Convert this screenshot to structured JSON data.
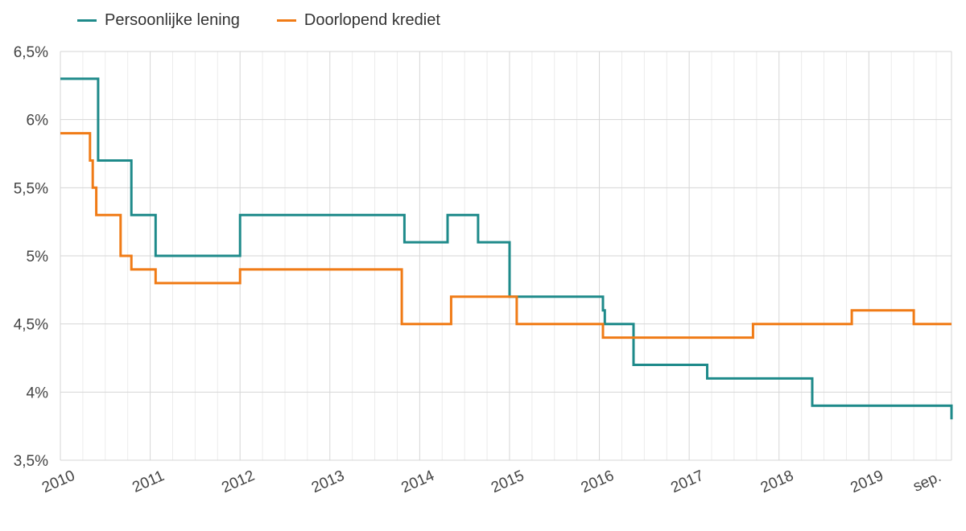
{
  "chart_data": {
    "type": "line",
    "step": true,
    "x_range": [
      2010.0,
      2019.92
    ],
    "ylim": [
      3.5,
      6.5
    ],
    "y_ticks": [
      {
        "value": 3.5,
        "label": "3,5%"
      },
      {
        "value": 4.0,
        "label": "4%"
      },
      {
        "value": 4.5,
        "label": "4,5%"
      },
      {
        "value": 5.0,
        "label": "5%"
      },
      {
        "value": 5.5,
        "label": "5,5%"
      },
      {
        "value": 6.0,
        "label": "6%"
      },
      {
        "value": 6.5,
        "label": "6,5%"
      }
    ],
    "x_ticks": [
      {
        "value": 2010.0,
        "label": "2010"
      },
      {
        "value": 2011.0,
        "label": "2011"
      },
      {
        "value": 2012.0,
        "label": "2012"
      },
      {
        "value": 2013.0,
        "label": "2013"
      },
      {
        "value": 2014.0,
        "label": "2014"
      },
      {
        "value": 2015.0,
        "label": "2015"
      },
      {
        "value": 2016.0,
        "label": "2016"
      },
      {
        "value": 2017.0,
        "label": "2017"
      },
      {
        "value": 2018.0,
        "label": "2018"
      },
      {
        "value": 2019.0,
        "label": "2019"
      },
      {
        "value": 2019.67,
        "label": "sep."
      }
    ],
    "grid": true,
    "legend_position": "top-left",
    "series": [
      {
        "name": "Persoonlijke lening",
        "color": "#1e8a8a",
        "points": [
          [
            2010.0,
            6.3
          ],
          [
            2010.42,
            6.3
          ],
          [
            2010.42,
            5.7
          ],
          [
            2010.79,
            5.7
          ],
          [
            2010.79,
            5.3
          ],
          [
            2011.06,
            5.3
          ],
          [
            2011.06,
            5.0
          ],
          [
            2012.0,
            5.0
          ],
          [
            2012.0,
            5.3
          ],
          [
            2013.83,
            5.3
          ],
          [
            2013.83,
            5.1
          ],
          [
            2014.31,
            5.1
          ],
          [
            2014.31,
            5.3
          ],
          [
            2014.65,
            5.3
          ],
          [
            2014.65,
            5.1
          ],
          [
            2015.0,
            5.1
          ],
          [
            2015.0,
            4.7
          ],
          [
            2016.04,
            4.7
          ],
          [
            2016.04,
            4.6
          ],
          [
            2016.06,
            4.6
          ],
          [
            2016.06,
            4.5
          ],
          [
            2016.38,
            4.5
          ],
          [
            2016.38,
            4.2
          ],
          [
            2017.2,
            4.2
          ],
          [
            2017.2,
            4.1
          ],
          [
            2018.37,
            4.1
          ],
          [
            2018.37,
            3.9
          ],
          [
            2019.92,
            3.9
          ],
          [
            2019.92,
            3.8
          ]
        ]
      },
      {
        "name": "Doorlopend krediet",
        "color": "#f07b16",
        "points": [
          [
            2010.0,
            5.9
          ],
          [
            2010.33,
            5.9
          ],
          [
            2010.33,
            5.7
          ],
          [
            2010.36,
            5.7
          ],
          [
            2010.36,
            5.5
          ],
          [
            2010.4,
            5.5
          ],
          [
            2010.4,
            5.3
          ],
          [
            2010.67,
            5.3
          ],
          [
            2010.67,
            5.0
          ],
          [
            2010.79,
            5.0
          ],
          [
            2010.79,
            4.9
          ],
          [
            2011.06,
            4.9
          ],
          [
            2011.06,
            4.8
          ],
          [
            2012.0,
            4.8
          ],
          [
            2012.0,
            4.9
          ],
          [
            2013.8,
            4.9
          ],
          [
            2013.8,
            4.5
          ],
          [
            2014.35,
            4.5
          ],
          [
            2014.35,
            4.7
          ],
          [
            2015.08,
            4.7
          ],
          [
            2015.08,
            4.5
          ],
          [
            2016.04,
            4.5
          ],
          [
            2016.04,
            4.4
          ],
          [
            2017.71,
            4.4
          ],
          [
            2017.71,
            4.5
          ],
          [
            2018.81,
            4.5
          ],
          [
            2018.81,
            4.6
          ],
          [
            2019.5,
            4.6
          ],
          [
            2019.5,
            4.5
          ],
          [
            2019.92,
            4.5
          ]
        ]
      }
    ]
  }
}
